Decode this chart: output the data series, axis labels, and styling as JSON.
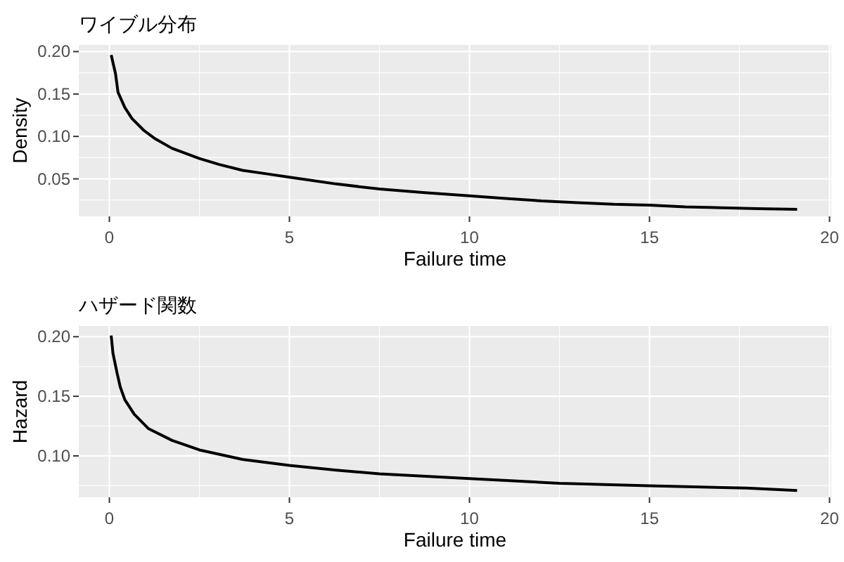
{
  "chart_data": [
    {
      "type": "line",
      "title": "ワイブル分布",
      "xlabel": "Failure time",
      "ylabel": "Density",
      "color": "#000000",
      "x": [
        0.05,
        0.17,
        0.24,
        0.43,
        0.63,
        0.96,
        1.28,
        1.74,
        2.5,
        3.05,
        3.7,
        4.36,
        5.0,
        6.3,
        7.5,
        8.7,
        10,
        11,
        12,
        13,
        14,
        15,
        16,
        17,
        18,
        19.1
      ],
      "values": [
        0.196,
        0.174,
        0.152,
        0.134,
        0.121,
        0.107,
        0.097,
        0.086,
        0.074,
        0.067,
        0.06,
        0.056,
        0.052,
        0.044,
        0.038,
        0.034,
        0.03,
        0.027,
        0.024,
        0.022,
        0.02,
        0.019,
        0.017,
        0.016,
        0.015,
        0.014
      ],
      "xlim": [
        -0.85,
        20.05
      ],
      "ylim": [
        0.0058,
        0.2078
      ],
      "xticks": [
        0,
        {
          "value": 2.5,
          "label": null
        },
        5,
        {
          "value": 7.5,
          "label": null
        },
        10,
        {
          "value": 12.5,
          "label": null
        },
        15,
        {
          "value": 17.5,
          "label": null
        },
        20
      ],
      "yticks": [
        {
          "value": 0.025,
          "label": null
        },
        {
          "value": 0.05,
          "label": "0.05"
        },
        {
          "value": 0.075,
          "label": null
        },
        {
          "value": 0.1,
          "label": "0.10"
        },
        {
          "value": 0.125,
          "label": null
        },
        {
          "value": 0.15,
          "label": "0.15"
        },
        {
          "value": 0.175,
          "label": null
        },
        {
          "value": 0.2,
          "label": "0.20"
        }
      ],
      "grid": true
    },
    {
      "type": "line",
      "title": "ハザード関数",
      "xlabel": "Failure time",
      "ylabel": "Hazard",
      "color": "#000000",
      "x": [
        0.05,
        0.1,
        0.21,
        0.3,
        0.43,
        0.69,
        1.08,
        1.74,
        2.5,
        3.7,
        5.0,
        6.3,
        7.5,
        8.7,
        10,
        12.5,
        15,
        17.7,
        19.1
      ],
      "values": [
        0.201,
        0.186,
        0.17,
        0.158,
        0.147,
        0.135,
        0.123,
        0.113,
        0.105,
        0.097,
        0.092,
        0.088,
        0.085,
        0.083,
        0.081,
        0.077,
        0.075,
        0.073,
        0.071
      ],
      "xlim": [
        -0.85,
        20.05
      ],
      "ylim": [
        0.0652,
        0.209
      ],
      "xticks": [
        0,
        {
          "value": 2.5,
          "label": null
        },
        5,
        {
          "value": 7.5,
          "label": null
        },
        10,
        {
          "value": 12.5,
          "label": null
        },
        15,
        {
          "value": 17.5,
          "label": null
        },
        20
      ],
      "yticks": [
        {
          "value": 0.075,
          "label": null
        },
        {
          "value": 0.1,
          "label": "0.10"
        },
        {
          "value": 0.125,
          "label": null
        },
        {
          "value": 0.15,
          "label": "0.15"
        },
        {
          "value": 0.175,
          "label": null
        },
        {
          "value": 0.2,
          "label": "0.20"
        }
      ],
      "grid": true
    }
  ]
}
